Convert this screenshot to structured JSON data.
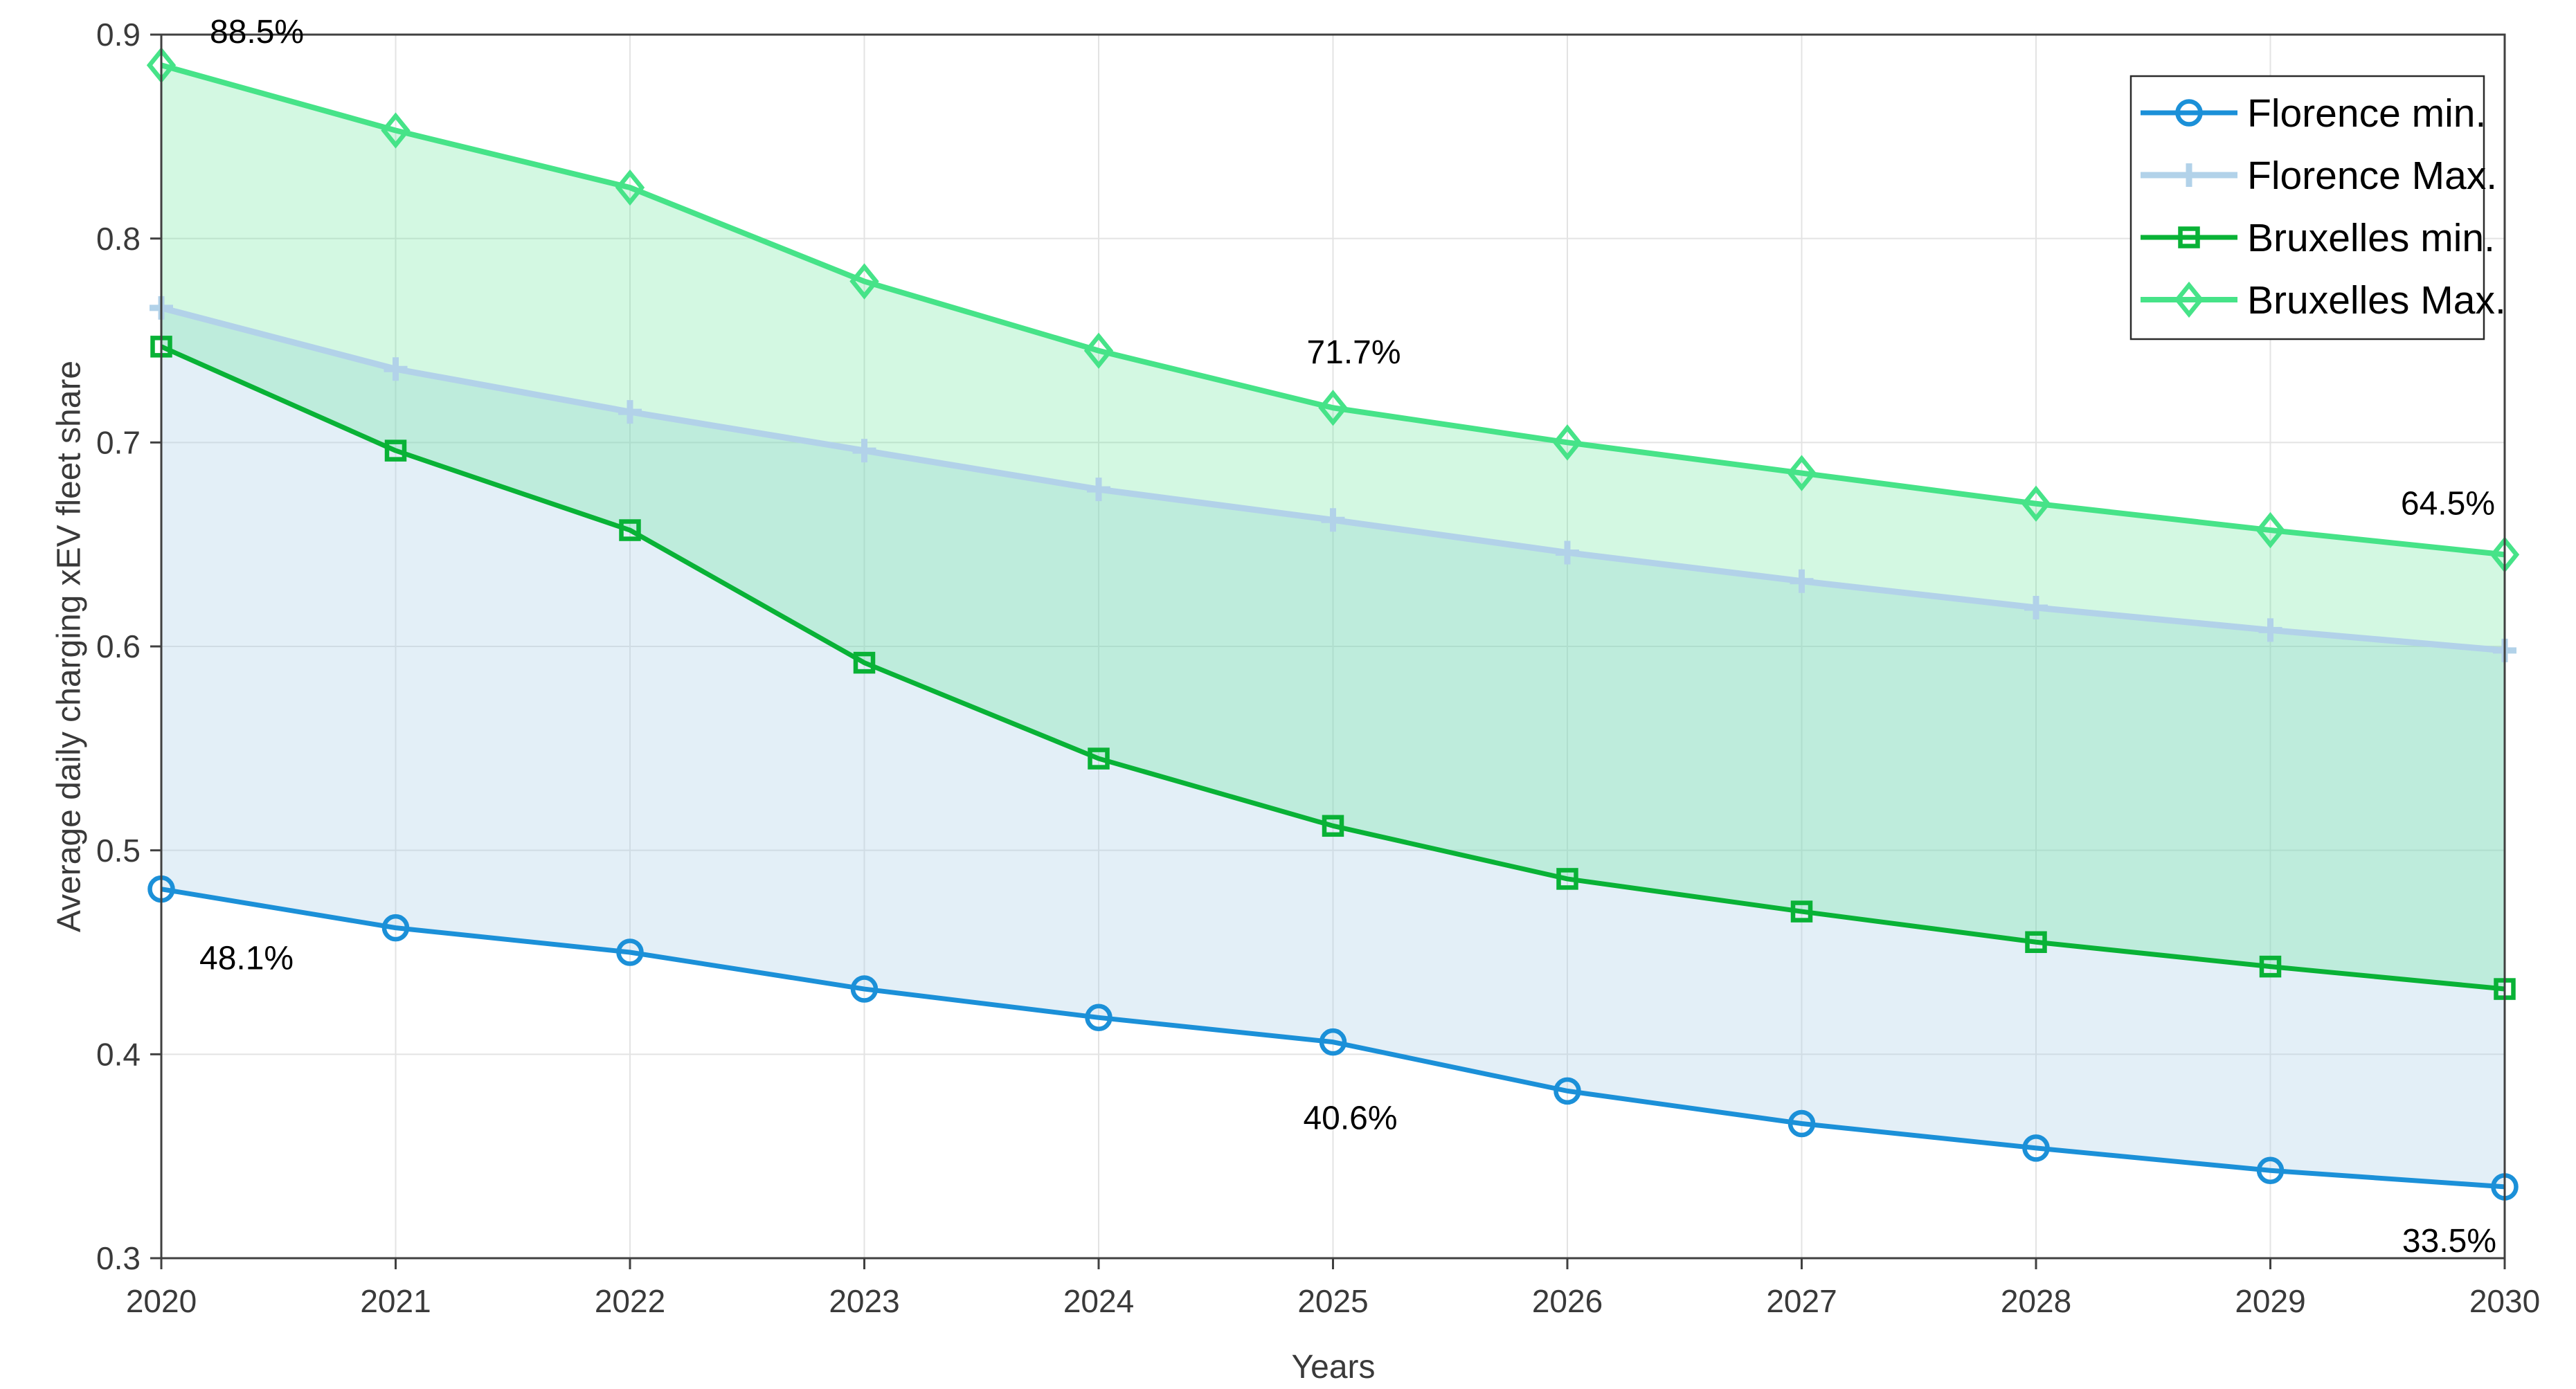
{
  "figure": {
    "background": "#ffffff",
    "axis_color": "#404040",
    "grid_color": "#e3e3e3",
    "tick_label_color": "#3a3a3a",
    "annotation_color": "#000000"
  },
  "chart_data": {
    "type": "line",
    "title": "",
    "xlabel": "Years",
    "ylabel": "Average daily charging xEV fleet share",
    "x": [
      2020,
      2021,
      2022,
      2023,
      2024,
      2025,
      2026,
      2027,
      2028,
      2029,
      2030
    ],
    "xlim": [
      2020,
      2030
    ],
    "ylim": [
      0.3,
      0.9
    ],
    "xticks": [
      "2020",
      "2021",
      "2022",
      "2023",
      "2024",
      "2025",
      "2026",
      "2027",
      "2028",
      "2029",
      "2030"
    ],
    "yticks": [
      "0.3",
      "0.4",
      "0.5",
      "0.6",
      "0.7",
      "0.8",
      "0.9"
    ],
    "grid": true,
    "legend_position": "top-right",
    "series": [
      {
        "name": "Florence min.",
        "marker": "circle",
        "color": "#1B90D8",
        "line_width": 7,
        "values": [
          0.481,
          0.462,
          0.45,
          0.432,
          0.418,
          0.406,
          0.382,
          0.366,
          0.354,
          0.343,
          0.335
        ]
      },
      {
        "name": "Florence Max.",
        "marker": "plus",
        "color": "#B2D2E9",
        "line_width": 9,
        "values": [
          0.766,
          0.736,
          0.715,
          0.696,
          0.677,
          0.662,
          0.646,
          0.632,
          0.619,
          0.608,
          0.598
        ]
      },
      {
        "name": "Bruxelles min.",
        "marker": "square",
        "color": "#09B236",
        "line_width": 7,
        "values": [
          0.747,
          0.696,
          0.657,
          0.592,
          0.545,
          0.512,
          0.486,
          0.47,
          0.455,
          0.443,
          0.432
        ]
      },
      {
        "name": "Bruxelles Max.",
        "marker": "diamond",
        "color": "#46E388",
        "line_width": 8,
        "values": [
          0.885,
          0.853,
          0.825,
          0.779,
          0.745,
          0.717,
          0.7,
          0.685,
          0.67,
          0.657,
          0.645
        ]
      }
    ],
    "bands": [
      {
        "name": "Florence range",
        "lower": "Florence min.",
        "upper": "Florence Max.",
        "color": "rgba(169,207,232,0.33)"
      },
      {
        "name": "Bruxelles range",
        "lower": "Bruxelles min.",
        "upper": "Bruxelles Max.",
        "color": "rgba(80,226,140,0.25)"
      }
    ],
    "annotations": [
      {
        "text": "88.5%",
        "series": "Bruxelles Max.",
        "year": 2020,
        "value": 0.885,
        "placement": "above-right"
      },
      {
        "text": "71.7%",
        "series": "Bruxelles Max.",
        "year": 2025,
        "value": 0.717,
        "placement": "above"
      },
      {
        "text": "64.5%",
        "series": "Bruxelles Max.",
        "year": 2030,
        "value": 0.645,
        "placement": "above-left"
      },
      {
        "text": "48.1%",
        "series": "Florence min.",
        "year": 2020,
        "value": 0.481,
        "placement": "below-right"
      },
      {
        "text": "40.6%",
        "series": "Florence min.",
        "year": 2025,
        "value": 0.406,
        "placement": "below"
      },
      {
        "text": "33.5%",
        "series": "Florence min.",
        "year": 2030,
        "value": 0.335,
        "placement": "below-left"
      }
    ]
  },
  "legend": {
    "items": [
      "Florence min.",
      "Florence Max.",
      "Bruxelles min.",
      "Bruxelles Max."
    ]
  }
}
